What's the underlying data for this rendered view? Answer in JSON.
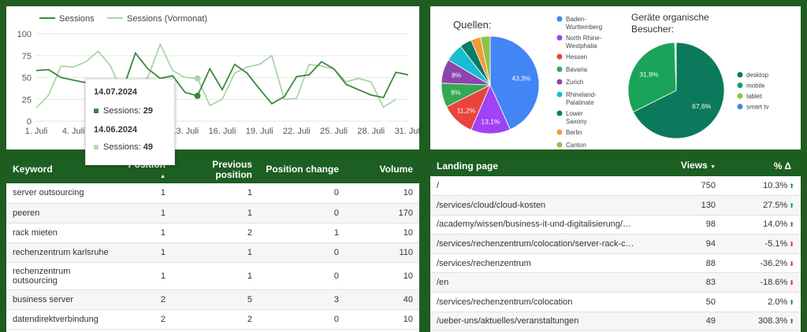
{
  "line_chart": {
    "legend": [
      "Sessions",
      "Sessions (Vormonat)"
    ],
    "colors": {
      "current": "#3a8a3a",
      "previous": "#a9d6a9"
    },
    "y_ticks": [
      "0",
      "25",
      "50",
      "75",
      "100"
    ],
    "x_ticks": [
      "1. Juli",
      "4. Juli",
      "7. Juli",
      "10. Juli",
      "13. Juli",
      "16. Juli",
      "19. Juli",
      "22. Juli",
      "25. Juli",
      "28. Juli",
      "31. Juli"
    ],
    "tooltip": {
      "date1": "14.07.2024",
      "label1": "Sessions:",
      "value1": "29",
      "date2": "14.06.2024",
      "label2": "Sessions:",
      "value2": "49"
    }
  },
  "chart_data": {
    "type": "line",
    "x": [
      1,
      2,
      3,
      4,
      5,
      6,
      7,
      8,
      9,
      10,
      11,
      12,
      13,
      14,
      15,
      16,
      17,
      18,
      19,
      20,
      21,
      22,
      23,
      24,
      25,
      26,
      27,
      28,
      29,
      30,
      31
    ],
    "ylim": [
      0,
      100
    ],
    "series": [
      {
        "name": "Sessions",
        "values": [
          58,
          59,
          50,
          47,
          44,
          42,
          40,
          37,
          78,
          60,
          49,
          52,
          33,
          29,
          60,
          36,
          65,
          55,
          37,
          20,
          28,
          51,
          53,
          68,
          60,
          42,
          36,
          30,
          27,
          56,
          53
        ]
      },
      {
        "name": "Sessions (Vormonat)",
        "values": [
          15,
          30,
          63,
          62,
          68,
          80,
          63,
          30,
          38,
          50,
          88,
          58,
          50,
          49,
          18,
          25,
          55,
          62,
          65,
          75,
          25,
          26,
          65,
          63,
          60,
          45,
          49,
          45,
          16,
          25,
          null
        ]
      }
    ]
  },
  "pie_sources": {
    "title": "Quellen:",
    "slices": [
      {
        "label": "Baden-Wurttemberg",
        "value": 43.3,
        "pct_label": "43,3%",
        "color": "#4285f4"
      },
      {
        "label": "North Rhine-Westphalia",
        "value": 13.1,
        "pct_label": "13,1%",
        "color": "#a142f4"
      },
      {
        "label": "Hessen",
        "value": 11.2,
        "pct_label": "11,2%",
        "color": "#e8453c"
      },
      {
        "label": "Bavaria",
        "value": 8,
        "pct_label": "8%",
        "color": "#34a853"
      },
      {
        "label": "Zurich",
        "value": 8,
        "pct_label": "8%",
        "color": "#8e44ad"
      },
      {
        "label": "Rhineland-Palatinate",
        "value": 6,
        "pct_label": "",
        "color": "#17becf"
      },
      {
        "label": "Lower Saxony",
        "value": 4,
        "pct_label": "",
        "color": "#0b7a67"
      },
      {
        "label": "Berlin",
        "value": 3.2,
        "pct_label": "",
        "color": "#f29b38"
      },
      {
        "label": "Canton of",
        "value": 3.2,
        "pct_label": "",
        "color": "#8bc34a"
      }
    ]
  },
  "pie_devices": {
    "title_line1": "Geräte organische",
    "title_line2": "Besucher:",
    "slices": [
      {
        "label": "desktop",
        "value": 67.6,
        "pct_label": "67,6%",
        "color": "#0b7a5c"
      },
      {
        "label": "mobile",
        "value": 31.9,
        "pct_label": "31,9%",
        "color": "#1aa35a"
      },
      {
        "label": "tablet",
        "value": 0.3,
        "pct_label": "",
        "color": "#8bc34a"
      },
      {
        "label": "smart tv",
        "value": 0.2,
        "pct_label": "",
        "color": "#4285f4"
      }
    ]
  },
  "keywords": {
    "headers": {
      "keyword": "Keyword",
      "position": "Position",
      "previous_1": "Previous",
      "previous_2": "position",
      "change": "Position change",
      "volume": "Volume"
    },
    "rows": [
      {
        "kw": "server outsourcing",
        "pos": "1",
        "prev": "1",
        "chg": "0",
        "vol": "10"
      },
      {
        "kw": "peeren",
        "pos": "1",
        "prev": "1",
        "chg": "0",
        "vol": "170"
      },
      {
        "kw": "rack mieten",
        "pos": "1",
        "prev": "2",
        "chg": "1",
        "vol": "10"
      },
      {
        "kw": "rechenzentrum karlsruhe",
        "pos": "1",
        "prev": "1",
        "chg": "0",
        "vol": "110"
      },
      {
        "kw": "rechenzentrum",
        "kw2": "outsourcing",
        "pos": "1",
        "prev": "1",
        "chg": "0",
        "vol": "10"
      },
      {
        "kw": "business server",
        "pos": "2",
        "prev": "5",
        "chg": "3",
        "vol": "40"
      },
      {
        "kw": "datendirektverbindung",
        "pos": "2",
        "prev": "2",
        "chg": "0",
        "vol": "10"
      }
    ]
  },
  "landing": {
    "headers": {
      "page": "Landing page",
      "views": "Views",
      "delta": "% Δ"
    },
    "rows": [
      {
        "page": "/",
        "views": "750",
        "delta": "10.3%"
      },
      {
        "page": "/services/cloud/cloud-kosten",
        "views": "130",
        "delta": "27.5%"
      },
      {
        "page": "/academy/wissen/business-it-und-digitalisierung/ma...",
        "views": "98",
        "delta": "14.0%"
      },
      {
        "page": "/services/rechenzentrum/colocation/server-rack-cag...",
        "views": "94",
        "delta": "-5.1%"
      },
      {
        "page": "/services/rechenzentrum",
        "views": "88",
        "delta": "-36.2%"
      },
      {
        "page": "/en",
        "views": "83",
        "delta": "-18.6%"
      },
      {
        "page": "/services/rechenzentrum/colocation",
        "views": "50",
        "delta": "2.0%"
      },
      {
        "page": "/ueber-uns/aktuelles/veranstaltungen",
        "views": "49",
        "delta": "308.3%"
      }
    ]
  }
}
